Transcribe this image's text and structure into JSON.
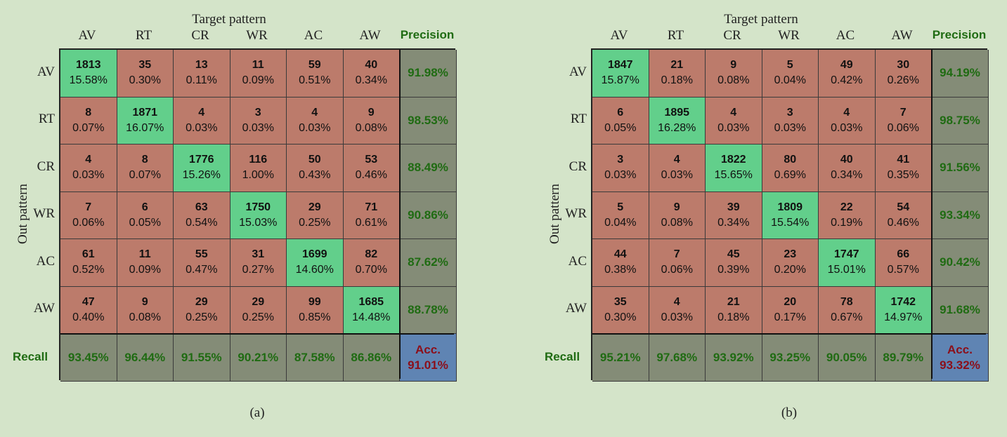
{
  "figure": {
    "target_title": "Target pattern",
    "out_title": "Out pattern",
    "precision_label": "Precision",
    "recall_label": "Recall",
    "accuracy_label": "Acc.",
    "classes": [
      "AV",
      "RT",
      "CR",
      "WR",
      "AC",
      "AW"
    ],
    "colors": {
      "background": "#d4e4c9",
      "off_diagonal": "#bc7b6b",
      "diagonal": "#62cf8b",
      "summary": "#848c77",
      "accuracy": "#5f84b3",
      "summary_text": "#1f6b12",
      "accuracy_text": "#8b0f1a"
    }
  },
  "chart_data": [
    {
      "type": "heatmap",
      "caption": "(a)",
      "xlabel": "Target pattern",
      "ylabel": "Out pattern",
      "categories": [
        "AV",
        "RT",
        "CR",
        "WR",
        "AC",
        "AW"
      ],
      "counts": [
        [
          1813,
          35,
          13,
          11,
          59,
          40
        ],
        [
          8,
          1871,
          4,
          3,
          4,
          9
        ],
        [
          4,
          8,
          1776,
          116,
          50,
          53
        ],
        [
          7,
          6,
          63,
          1750,
          29,
          71
        ],
        [
          61,
          11,
          55,
          31,
          1699,
          82
        ],
        [
          47,
          9,
          29,
          29,
          99,
          1685
        ]
      ],
      "percents": [
        [
          "15.58%",
          "0.30%",
          "0.11%",
          "0.09%",
          "0.51%",
          "0.34%"
        ],
        [
          "0.07%",
          "16.07%",
          "0.03%",
          "0.03%",
          "0.03%",
          "0.08%"
        ],
        [
          "0.03%",
          "0.07%",
          "15.26%",
          "1.00%",
          "0.43%",
          "0.46%"
        ],
        [
          "0.06%",
          "0.05%",
          "0.54%",
          "15.03%",
          "0.25%",
          "0.61%"
        ],
        [
          "0.52%",
          "0.09%",
          "0.47%",
          "0.27%",
          "14.60%",
          "0.70%"
        ],
        [
          "0.40%",
          "0.08%",
          "0.25%",
          "0.25%",
          "0.85%",
          "14.48%"
        ]
      ],
      "precision": [
        "91.98%",
        "98.53%",
        "88.49%",
        "90.86%",
        "87.62%",
        "88.78%"
      ],
      "recall": [
        "93.45%",
        "96.44%",
        "91.55%",
        "90.21%",
        "87.58%",
        "86.86%"
      ],
      "accuracy": "91.01%"
    },
    {
      "type": "heatmap",
      "caption": "(b)",
      "xlabel": "Target pattern",
      "ylabel": "Out pattern",
      "categories": [
        "AV",
        "RT",
        "CR",
        "WR",
        "AC",
        "AW"
      ],
      "counts": [
        [
          1847,
          21,
          9,
          5,
          49,
          30
        ],
        [
          6,
          1895,
          4,
          3,
          4,
          7
        ],
        [
          3,
          4,
          1822,
          80,
          40,
          41
        ],
        [
          5,
          9,
          39,
          1809,
          22,
          54
        ],
        [
          44,
          7,
          45,
          23,
          1747,
          66
        ],
        [
          35,
          4,
          21,
          20,
          78,
          1742
        ]
      ],
      "percents": [
        [
          "15.87%",
          "0.18%",
          "0.08%",
          "0.04%",
          "0.42%",
          "0.26%"
        ],
        [
          "0.05%",
          "16.28%",
          "0.03%",
          "0.03%",
          "0.03%",
          "0.06%"
        ],
        [
          "0.03%",
          "0.03%",
          "15.65%",
          "0.69%",
          "0.34%",
          "0.35%"
        ],
        [
          "0.04%",
          "0.08%",
          "0.34%",
          "15.54%",
          "0.19%",
          "0.46%"
        ],
        [
          "0.38%",
          "0.06%",
          "0.39%",
          "0.20%",
          "15.01%",
          "0.57%"
        ],
        [
          "0.30%",
          "0.03%",
          "0.18%",
          "0.17%",
          "0.67%",
          "14.97%"
        ]
      ],
      "precision": [
        "94.19%",
        "98.75%",
        "91.56%",
        "93.34%",
        "90.42%",
        "91.68%"
      ],
      "recall": [
        "95.21%",
        "97.68%",
        "93.92%",
        "93.25%",
        "90.05%",
        "89.79%"
      ],
      "accuracy": "93.32%"
    }
  ]
}
